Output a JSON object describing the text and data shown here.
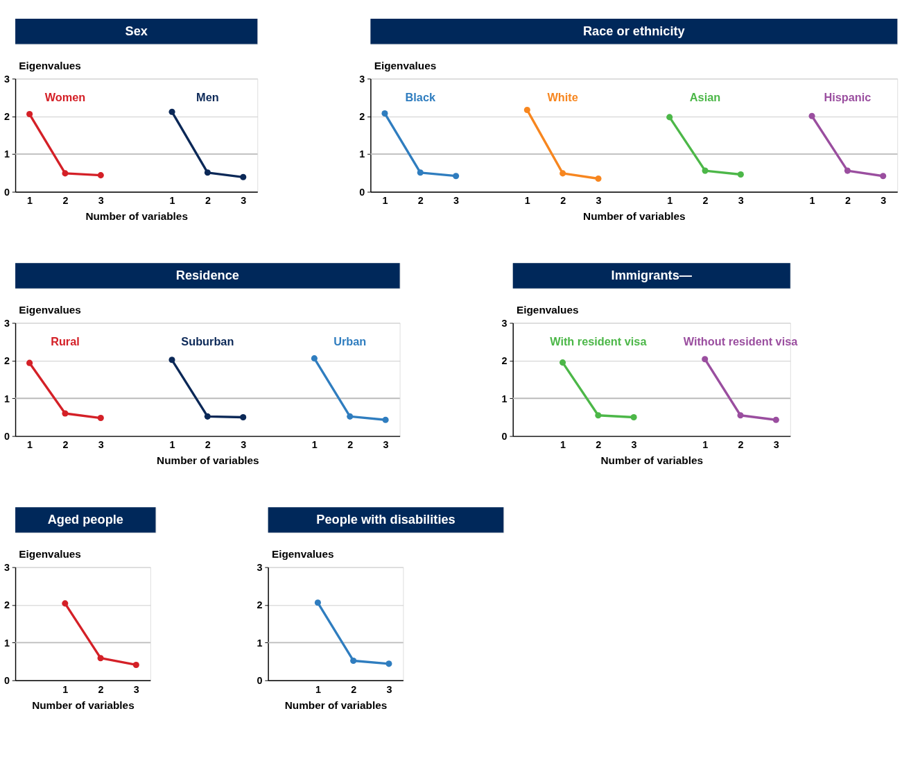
{
  "chart_data": [
    {
      "type": "line",
      "title": "Sex",
      "xlabel": "Number of variables",
      "ylabel": "Eigenvalues",
      "ylim": [
        0,
        3
      ],
      "yticks": [
        0,
        1,
        2,
        3
      ],
      "categories": [
        "1",
        "2",
        "3",
        null,
        "1",
        "2",
        "3"
      ],
      "grid": "y",
      "marker": "circle",
      "ref_lines": [
        {
          "axis": "y",
          "value": 1,
          "color": "#bbbbbb"
        }
      ],
      "series": [
        {
          "name": "Women",
          "color": "#d42027",
          "values": [
            2.06,
            0.49,
            0.44,
            null,
            null,
            null,
            null
          ]
        },
        {
          "name": "Men",
          "color": "#0b2857",
          "values": [
            null,
            null,
            null,
            null,
            2.12,
            0.51,
            0.39
          ]
        }
      ]
    },
    {
      "type": "line",
      "title": "Race or ethnicity",
      "xlabel": "Number of variables",
      "ylabel": "Eigenvalues",
      "ylim": [
        0,
        3
      ],
      "yticks": [
        0,
        1,
        2,
        3
      ],
      "categories": [
        "1",
        "2",
        "3",
        null,
        "1",
        "2",
        "3",
        null,
        "1",
        "2",
        "3",
        null,
        "1",
        "2",
        "3"
      ],
      "grid": "y",
      "marker": "circle",
      "ref_lines": [
        {
          "axis": "y",
          "value": 1,
          "color": "#bbbbbb"
        }
      ],
      "series": [
        {
          "name": "Black",
          "color": "#2f7dbf",
          "values": [
            2.08,
            0.51,
            0.42,
            null,
            null,
            null,
            null,
            null,
            null,
            null,
            null,
            null,
            null,
            null,
            null
          ]
        },
        {
          "name": "White",
          "color": "#f7861f",
          "values": [
            null,
            null,
            null,
            null,
            2.17,
            0.49,
            0.35,
            null,
            null,
            null,
            null,
            null,
            null,
            null,
            null
          ]
        },
        {
          "name": "Asian",
          "color": "#4cb748",
          "values": [
            null,
            null,
            null,
            null,
            null,
            null,
            null,
            null,
            1.98,
            0.56,
            0.46,
            null,
            null,
            null,
            null
          ]
        },
        {
          "name": "Hispanic",
          "color": "#9a4e9f",
          "values": [
            null,
            null,
            null,
            null,
            null,
            null,
            null,
            null,
            null,
            null,
            null,
            null,
            2.01,
            0.56,
            0.42
          ]
        }
      ]
    },
    {
      "type": "line",
      "title": "Residence",
      "xlabel": "Number of variables",
      "ylabel": "Eigenvalues",
      "ylim": [
        0,
        3
      ],
      "yticks": [
        0,
        1,
        2,
        3
      ],
      "categories": [
        "1",
        "2",
        "3",
        null,
        "1",
        "2",
        "3",
        null,
        "1",
        "2",
        "3"
      ],
      "grid": "y",
      "marker": "circle",
      "ref_lines": [
        {
          "axis": "y",
          "value": 1,
          "color": "#bbbbbb"
        }
      ],
      "series": [
        {
          "name": "Rural",
          "color": "#d42027",
          "values": [
            1.94,
            0.6,
            0.48,
            null,
            null,
            null,
            null,
            null,
            null,
            null,
            null
          ]
        },
        {
          "name": "Suburban",
          "color": "#0b2857",
          "values": [
            null,
            null,
            null,
            null,
            2.02,
            0.52,
            0.5,
            null,
            null,
            null,
            null
          ]
        },
        {
          "name": "Urban",
          "color": "#2f7dbf",
          "values": [
            null,
            null,
            null,
            null,
            null,
            null,
            null,
            null,
            2.06,
            0.52,
            0.43
          ]
        }
      ]
    },
    {
      "type": "line",
      "title": "Immigrants—",
      "xlabel": "Number of variables",
      "ylabel": "Eigenvalues",
      "ylim": [
        0,
        3
      ],
      "yticks": [
        0,
        1,
        2,
        3
      ],
      "categories": [
        null,
        "1",
        "2",
        "3",
        null,
        "1",
        "2",
        "3"
      ],
      "grid": "y",
      "marker": "circle",
      "ref_lines": [
        {
          "axis": "y",
          "value": 1,
          "color": "#bbbbbb"
        }
      ],
      "series": [
        {
          "name": "With resident visa",
          "color": "#4cb748",
          "values": [
            null,
            1.95,
            0.55,
            0.5,
            null,
            null,
            null,
            null
          ]
        },
        {
          "name": "Without resident visa",
          "color": "#9a4e9f",
          "values": [
            null,
            null,
            null,
            null,
            null,
            2.04,
            0.55,
            0.43
          ]
        }
      ]
    },
    {
      "type": "line",
      "title": "Aged people",
      "xlabel": "Number of variables",
      "ylabel": "Eigenvalues",
      "ylim": [
        0,
        3
      ],
      "yticks": [
        0,
        1,
        2,
        3
      ],
      "categories": [
        null,
        "1",
        "2",
        "3"
      ],
      "grid": "y",
      "marker": "circle",
      "ref_lines": [
        {
          "axis": "y",
          "value": 1,
          "color": "#bbbbbb"
        }
      ],
      "series": [
        {
          "color": "#d42027",
          "values": [
            null,
            2.04,
            0.59,
            0.41
          ]
        }
      ]
    },
    {
      "type": "line",
      "title": "People with disabilities",
      "xlabel": "Number of variables",
      "ylabel": "Eigenvalues",
      "ylim": [
        0,
        3
      ],
      "yticks": [
        0,
        1,
        2,
        3
      ],
      "categories": [
        null,
        "1",
        "2",
        "3"
      ],
      "grid": "y",
      "marker": "circle",
      "ref_lines": [
        {
          "axis": "y",
          "value": 1,
          "color": "#bbbbbb"
        }
      ],
      "series": [
        {
          "color": "#2f7dbf",
          "values": [
            null,
            2.06,
            0.52,
            0.44
          ]
        }
      ]
    }
  ]
}
